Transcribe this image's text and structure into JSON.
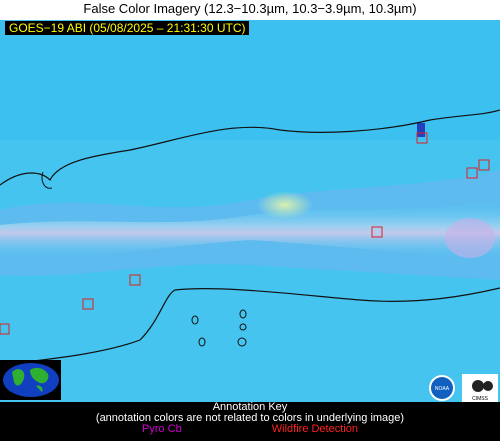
{
  "header": {
    "title": "False Color Imagery (12.3−10.3µm, 10.3−3.9µm, 10.3µm)"
  },
  "image": {
    "subtitle": "GOES−19 ABI (05/08/2025 – 21:31:30 UTC)"
  },
  "logos": {
    "noaa": "NOAA",
    "cimss": "CIMSS"
  },
  "legend": {
    "title": "Annotation Key",
    "note": "(annotation colors are not related to colors in underlying image)",
    "items": [
      "Pyro Cb",
      "Wildfire Detection"
    ]
  }
}
